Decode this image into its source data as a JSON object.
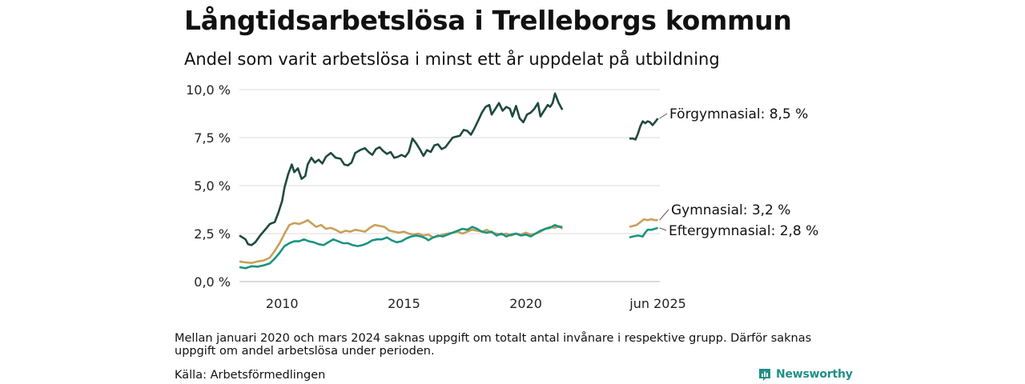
{
  "header": {
    "title": "Långtidsarbetslösa i Trelleborgs kommun",
    "subtitle": "Andel som varit arbetslösa i minst ett år uppdelat på utbildning"
  },
  "footer": {
    "note": "Mellan januari 2020 och mars 2024 saknas uppgift om totalt antal invånare i respektive grupp. Därför saknas uppgift om andel arbetslösa under perioden.",
    "source": "Källa: Arbetsförmedlingen",
    "brand": "Newsworthy"
  },
  "chart_data": {
    "type": "line",
    "title": "Långtidsarbetslösa i Trelleborgs kommun",
    "subtitle": "Andel som varit arbetslösa i minst ett år uppdelat på utbildning",
    "xlim": [
      2008.25,
      2025.5
    ],
    "ylim": [
      0,
      10
    ],
    "y_ticks": [
      0,
      2.5,
      5,
      7.5,
      10
    ],
    "y_tick_labels": [
      "0,0 %",
      "2,5 %",
      "5,0 %",
      "7,5 %",
      "10,0 %"
    ],
    "x_ticks": [
      2010,
      2015,
      2020,
      2025.42
    ],
    "x_tick_labels": [
      "2010",
      "2015",
      "2020",
      "jun 2025"
    ],
    "grid": "horizontal",
    "legend": "end-of-line labels (right)",
    "series": [
      {
        "name": "Förgymnasial",
        "end_label": "Förgymnasial: 8,5 %",
        "color": "#1f4a3f",
        "segments": [
          [
            [
              2008.25,
              2.4
            ],
            [
              2008.5,
              2.2
            ],
            [
              2008.6,
              1.95
            ],
            [
              2008.75,
              1.9
            ],
            [
              2008.9,
              2.05
            ],
            [
              2009.1,
              2.4
            ],
            [
              2009.3,
              2.7
            ],
            [
              2009.5,
              3.0
            ],
            [
              2009.7,
              3.1
            ],
            [
              2009.85,
              3.6
            ],
            [
              2010.0,
              4.2
            ],
            [
              2010.1,
              4.9
            ],
            [
              2010.25,
              5.6
            ],
            [
              2010.4,
              6.1
            ],
            [
              2010.5,
              5.7
            ],
            [
              2010.65,
              5.9
            ],
            [
              2010.8,
              5.35
            ],
            [
              2010.95,
              5.5
            ],
            [
              2011.05,
              6.1
            ],
            [
              2011.2,
              6.45
            ],
            [
              2011.35,
              6.2
            ],
            [
              2011.5,
              6.35
            ],
            [
              2011.65,
              6.15
            ],
            [
              2011.8,
              6.5
            ],
            [
              2012.0,
              6.7
            ],
            [
              2012.2,
              6.45
            ],
            [
              2012.4,
              6.4
            ],
            [
              2012.55,
              6.1
            ],
            [
              2012.7,
              6.05
            ],
            [
              2012.85,
              6.2
            ],
            [
              2013.0,
              6.7
            ],
            [
              2013.2,
              6.85
            ],
            [
              2013.4,
              6.95
            ],
            [
              2013.55,
              6.75
            ],
            [
              2013.7,
              6.6
            ],
            [
              2013.85,
              6.9
            ],
            [
              2014.0,
              7.0
            ],
            [
              2014.15,
              6.8
            ],
            [
              2014.3,
              6.65
            ],
            [
              2014.45,
              6.75
            ],
            [
              2014.6,
              6.45
            ],
            [
              2014.75,
              6.5
            ],
            [
              2014.9,
              6.6
            ],
            [
              2015.05,
              6.5
            ],
            [
              2015.2,
              6.75
            ],
            [
              2015.35,
              7.45
            ],
            [
              2015.5,
              7.2
            ],
            [
              2015.65,
              6.9
            ],
            [
              2015.8,
              6.55
            ],
            [
              2015.95,
              6.85
            ],
            [
              2016.1,
              6.75
            ],
            [
              2016.25,
              7.1
            ],
            [
              2016.4,
              7.15
            ],
            [
              2016.55,
              6.9
            ],
            [
              2016.7,
              7.0
            ],
            [
              2016.85,
              7.25
            ],
            [
              2017.0,
              7.5
            ],
            [
              2017.15,
              7.55
            ],
            [
              2017.3,
              7.6
            ],
            [
              2017.45,
              7.9
            ],
            [
              2017.6,
              7.85
            ],
            [
              2017.75,
              7.65
            ],
            [
              2017.9,
              8.0
            ],
            [
              2018.05,
              8.4
            ],
            [
              2018.2,
              8.8
            ],
            [
              2018.35,
              9.1
            ],
            [
              2018.5,
              9.2
            ],
            [
              2018.6,
              8.7
            ],
            [
              2018.75,
              9.0
            ],
            [
              2018.9,
              9.3
            ],
            [
              2019.05,
              8.9
            ],
            [
              2019.2,
              9.1
            ],
            [
              2019.35,
              9.0
            ],
            [
              2019.45,
              8.6
            ],
            [
              2019.6,
              9.15
            ],
            [
              2019.75,
              8.5
            ],
            [
              2019.9,
              8.3
            ],
            [
              2020.05,
              8.7
            ],
            [
              2020.2,
              8.8
            ],
            [
              2020.35,
              9.0
            ],
            [
              2020.5,
              9.3
            ],
            [
              2020.6,
              8.6
            ],
            [
              2020.75,
              8.9
            ],
            [
              2020.9,
              9.2
            ],
            [
              2021.0,
              9.1
            ],
            [
              2021.1,
              9.3
            ],
            [
              2021.2,
              9.8
            ],
            [
              2021.35,
              9.3
            ],
            [
              2021.5,
              8.95
            ]
          ],
          [
            [
              2024.25,
              7.45
            ],
            [
              2024.4,
              7.45
            ],
            [
              2024.5,
              7.4
            ],
            [
              2024.6,
              7.7
            ],
            [
              2024.7,
              8.1
            ],
            [
              2024.8,
              8.35
            ],
            [
              2024.9,
              8.25
            ],
            [
              2025.0,
              8.35
            ],
            [
              2025.1,
              8.3
            ],
            [
              2025.2,
              8.15
            ],
            [
              2025.3,
              8.3
            ],
            [
              2025.42,
              8.5
            ]
          ]
        ]
      },
      {
        "name": "Gymnasial",
        "end_label": "Gymnasial: 3,2 %",
        "color": "#c8a05a",
        "segments": [
          [
            [
              2008.25,
              1.05
            ],
            [
              2008.5,
              1.0
            ],
            [
              2008.75,
              0.97
            ],
            [
              2009.0,
              1.05
            ],
            [
              2009.25,
              1.1
            ],
            [
              2009.5,
              1.25
            ],
            [
              2009.7,
              1.6
            ],
            [
              2009.9,
              2.0
            ],
            [
              2010.1,
              2.5
            ],
            [
              2010.3,
              2.95
            ],
            [
              2010.5,
              3.05
            ],
            [
              2010.7,
              3.0
            ],
            [
              2010.9,
              3.1
            ],
            [
              2011.05,
              3.2
            ],
            [
              2011.2,
              3.05
            ],
            [
              2011.4,
              2.85
            ],
            [
              2011.6,
              2.95
            ],
            [
              2011.8,
              2.75
            ],
            [
              2012.0,
              2.8
            ],
            [
              2012.2,
              2.7
            ],
            [
              2012.4,
              2.55
            ],
            [
              2012.6,
              2.65
            ],
            [
              2012.8,
              2.6
            ],
            [
              2013.0,
              2.7
            ],
            [
              2013.2,
              2.65
            ],
            [
              2013.4,
              2.6
            ],
            [
              2013.6,
              2.8
            ],
            [
              2013.8,
              2.95
            ],
            [
              2014.0,
              2.9
            ],
            [
              2014.2,
              2.85
            ],
            [
              2014.4,
              2.65
            ],
            [
              2014.6,
              2.6
            ],
            [
              2014.8,
              2.55
            ],
            [
              2015.0,
              2.6
            ],
            [
              2015.2,
              2.5
            ],
            [
              2015.4,
              2.45
            ],
            [
              2015.6,
              2.5
            ],
            [
              2015.8,
              2.4
            ],
            [
              2016.0,
              2.45
            ],
            [
              2016.2,
              2.3
            ],
            [
              2016.4,
              2.35
            ],
            [
              2016.6,
              2.45
            ],
            [
              2016.8,
              2.5
            ],
            [
              2017.0,
              2.55
            ],
            [
              2017.2,
              2.6
            ],
            [
              2017.4,
              2.5
            ],
            [
              2017.6,
              2.6
            ],
            [
              2017.8,
              2.7
            ],
            [
              2018.0,
              2.65
            ],
            [
              2018.2,
              2.6
            ],
            [
              2018.4,
              2.7
            ],
            [
              2018.6,
              2.55
            ],
            [
              2018.8,
              2.5
            ],
            [
              2019.0,
              2.45
            ],
            [
              2019.2,
              2.5
            ],
            [
              2019.4,
              2.4
            ],
            [
              2019.6,
              2.5
            ],
            [
              2019.8,
              2.45
            ],
            [
              2020.0,
              2.55
            ],
            [
              2020.2,
              2.45
            ],
            [
              2020.4,
              2.5
            ],
            [
              2020.6,
              2.6
            ],
            [
              2020.8,
              2.75
            ],
            [
              2021.0,
              2.85
            ],
            [
              2021.2,
              2.8
            ],
            [
              2021.35,
              2.9
            ],
            [
              2021.5,
              2.75
            ]
          ],
          [
            [
              2024.25,
              2.85
            ],
            [
              2024.4,
              2.9
            ],
            [
              2024.55,
              2.95
            ],
            [
              2024.7,
              3.1
            ],
            [
              2024.85,
              3.25
            ],
            [
              2025.0,
              3.2
            ],
            [
              2025.15,
              3.25
            ],
            [
              2025.3,
              3.2
            ],
            [
              2025.42,
              3.2
            ]
          ]
        ]
      },
      {
        "name": "Eftergymnasial",
        "end_label": "Eftergymnasial: 2,8 %",
        "color": "#1a9481",
        "segments": [
          [
            [
              2008.25,
              0.75
            ],
            [
              2008.5,
              0.7
            ],
            [
              2008.75,
              0.8
            ],
            [
              2009.0,
              0.78
            ],
            [
              2009.25,
              0.85
            ],
            [
              2009.5,
              0.95
            ],
            [
              2009.7,
              1.2
            ],
            [
              2009.9,
              1.5
            ],
            [
              2010.1,
              1.85
            ],
            [
              2010.3,
              2.0
            ],
            [
              2010.5,
              2.1
            ],
            [
              2010.7,
              2.1
            ],
            [
              2010.9,
              2.2
            ],
            [
              2011.1,
              2.1
            ],
            [
              2011.3,
              2.05
            ],
            [
              2011.5,
              1.95
            ],
            [
              2011.7,
              1.9
            ],
            [
              2011.9,
              2.05
            ],
            [
              2012.1,
              2.2
            ],
            [
              2012.3,
              2.1
            ],
            [
              2012.5,
              2.0
            ],
            [
              2012.7,
              2.0
            ],
            [
              2012.9,
              1.9
            ],
            [
              2013.1,
              1.85
            ],
            [
              2013.3,
              1.9
            ],
            [
              2013.5,
              2.0
            ],
            [
              2013.7,
              2.15
            ],
            [
              2013.9,
              2.2
            ],
            [
              2014.1,
              2.2
            ],
            [
              2014.3,
              2.3
            ],
            [
              2014.5,
              2.15
            ],
            [
              2014.7,
              2.05
            ],
            [
              2014.9,
              2.1
            ],
            [
              2015.1,
              2.25
            ],
            [
              2015.3,
              2.35
            ],
            [
              2015.5,
              2.4
            ],
            [
              2015.7,
              2.35
            ],
            [
              2015.9,
              2.25
            ],
            [
              2016.0,
              2.15
            ],
            [
              2016.2,
              2.3
            ],
            [
              2016.4,
              2.4
            ],
            [
              2016.6,
              2.35
            ],
            [
              2016.8,
              2.45
            ],
            [
              2017.0,
              2.55
            ],
            [
              2017.2,
              2.65
            ],
            [
              2017.4,
              2.75
            ],
            [
              2017.6,
              2.7
            ],
            [
              2017.8,
              2.85
            ],
            [
              2018.0,
              2.75
            ],
            [
              2018.2,
              2.6
            ],
            [
              2018.4,
              2.55
            ],
            [
              2018.6,
              2.6
            ],
            [
              2018.8,
              2.4
            ],
            [
              2019.0,
              2.5
            ],
            [
              2019.2,
              2.35
            ],
            [
              2019.4,
              2.45
            ],
            [
              2019.6,
              2.5
            ],
            [
              2019.8,
              2.4
            ],
            [
              2020.0,
              2.45
            ],
            [
              2020.2,
              2.35
            ],
            [
              2020.4,
              2.5
            ],
            [
              2020.6,
              2.65
            ],
            [
              2020.8,
              2.75
            ],
            [
              2021.0,
              2.8
            ],
            [
              2021.2,
              2.95
            ],
            [
              2021.35,
              2.85
            ],
            [
              2021.5,
              2.85
            ]
          ],
          [
            [
              2024.25,
              2.3
            ],
            [
              2024.4,
              2.35
            ],
            [
              2024.6,
              2.4
            ],
            [
              2024.8,
              2.35
            ],
            [
              2024.9,
              2.55
            ],
            [
              2025.0,
              2.7
            ],
            [
              2025.15,
              2.7
            ],
            [
              2025.3,
              2.75
            ],
            [
              2025.42,
              2.8
            ]
          ]
        ]
      }
    ]
  }
}
